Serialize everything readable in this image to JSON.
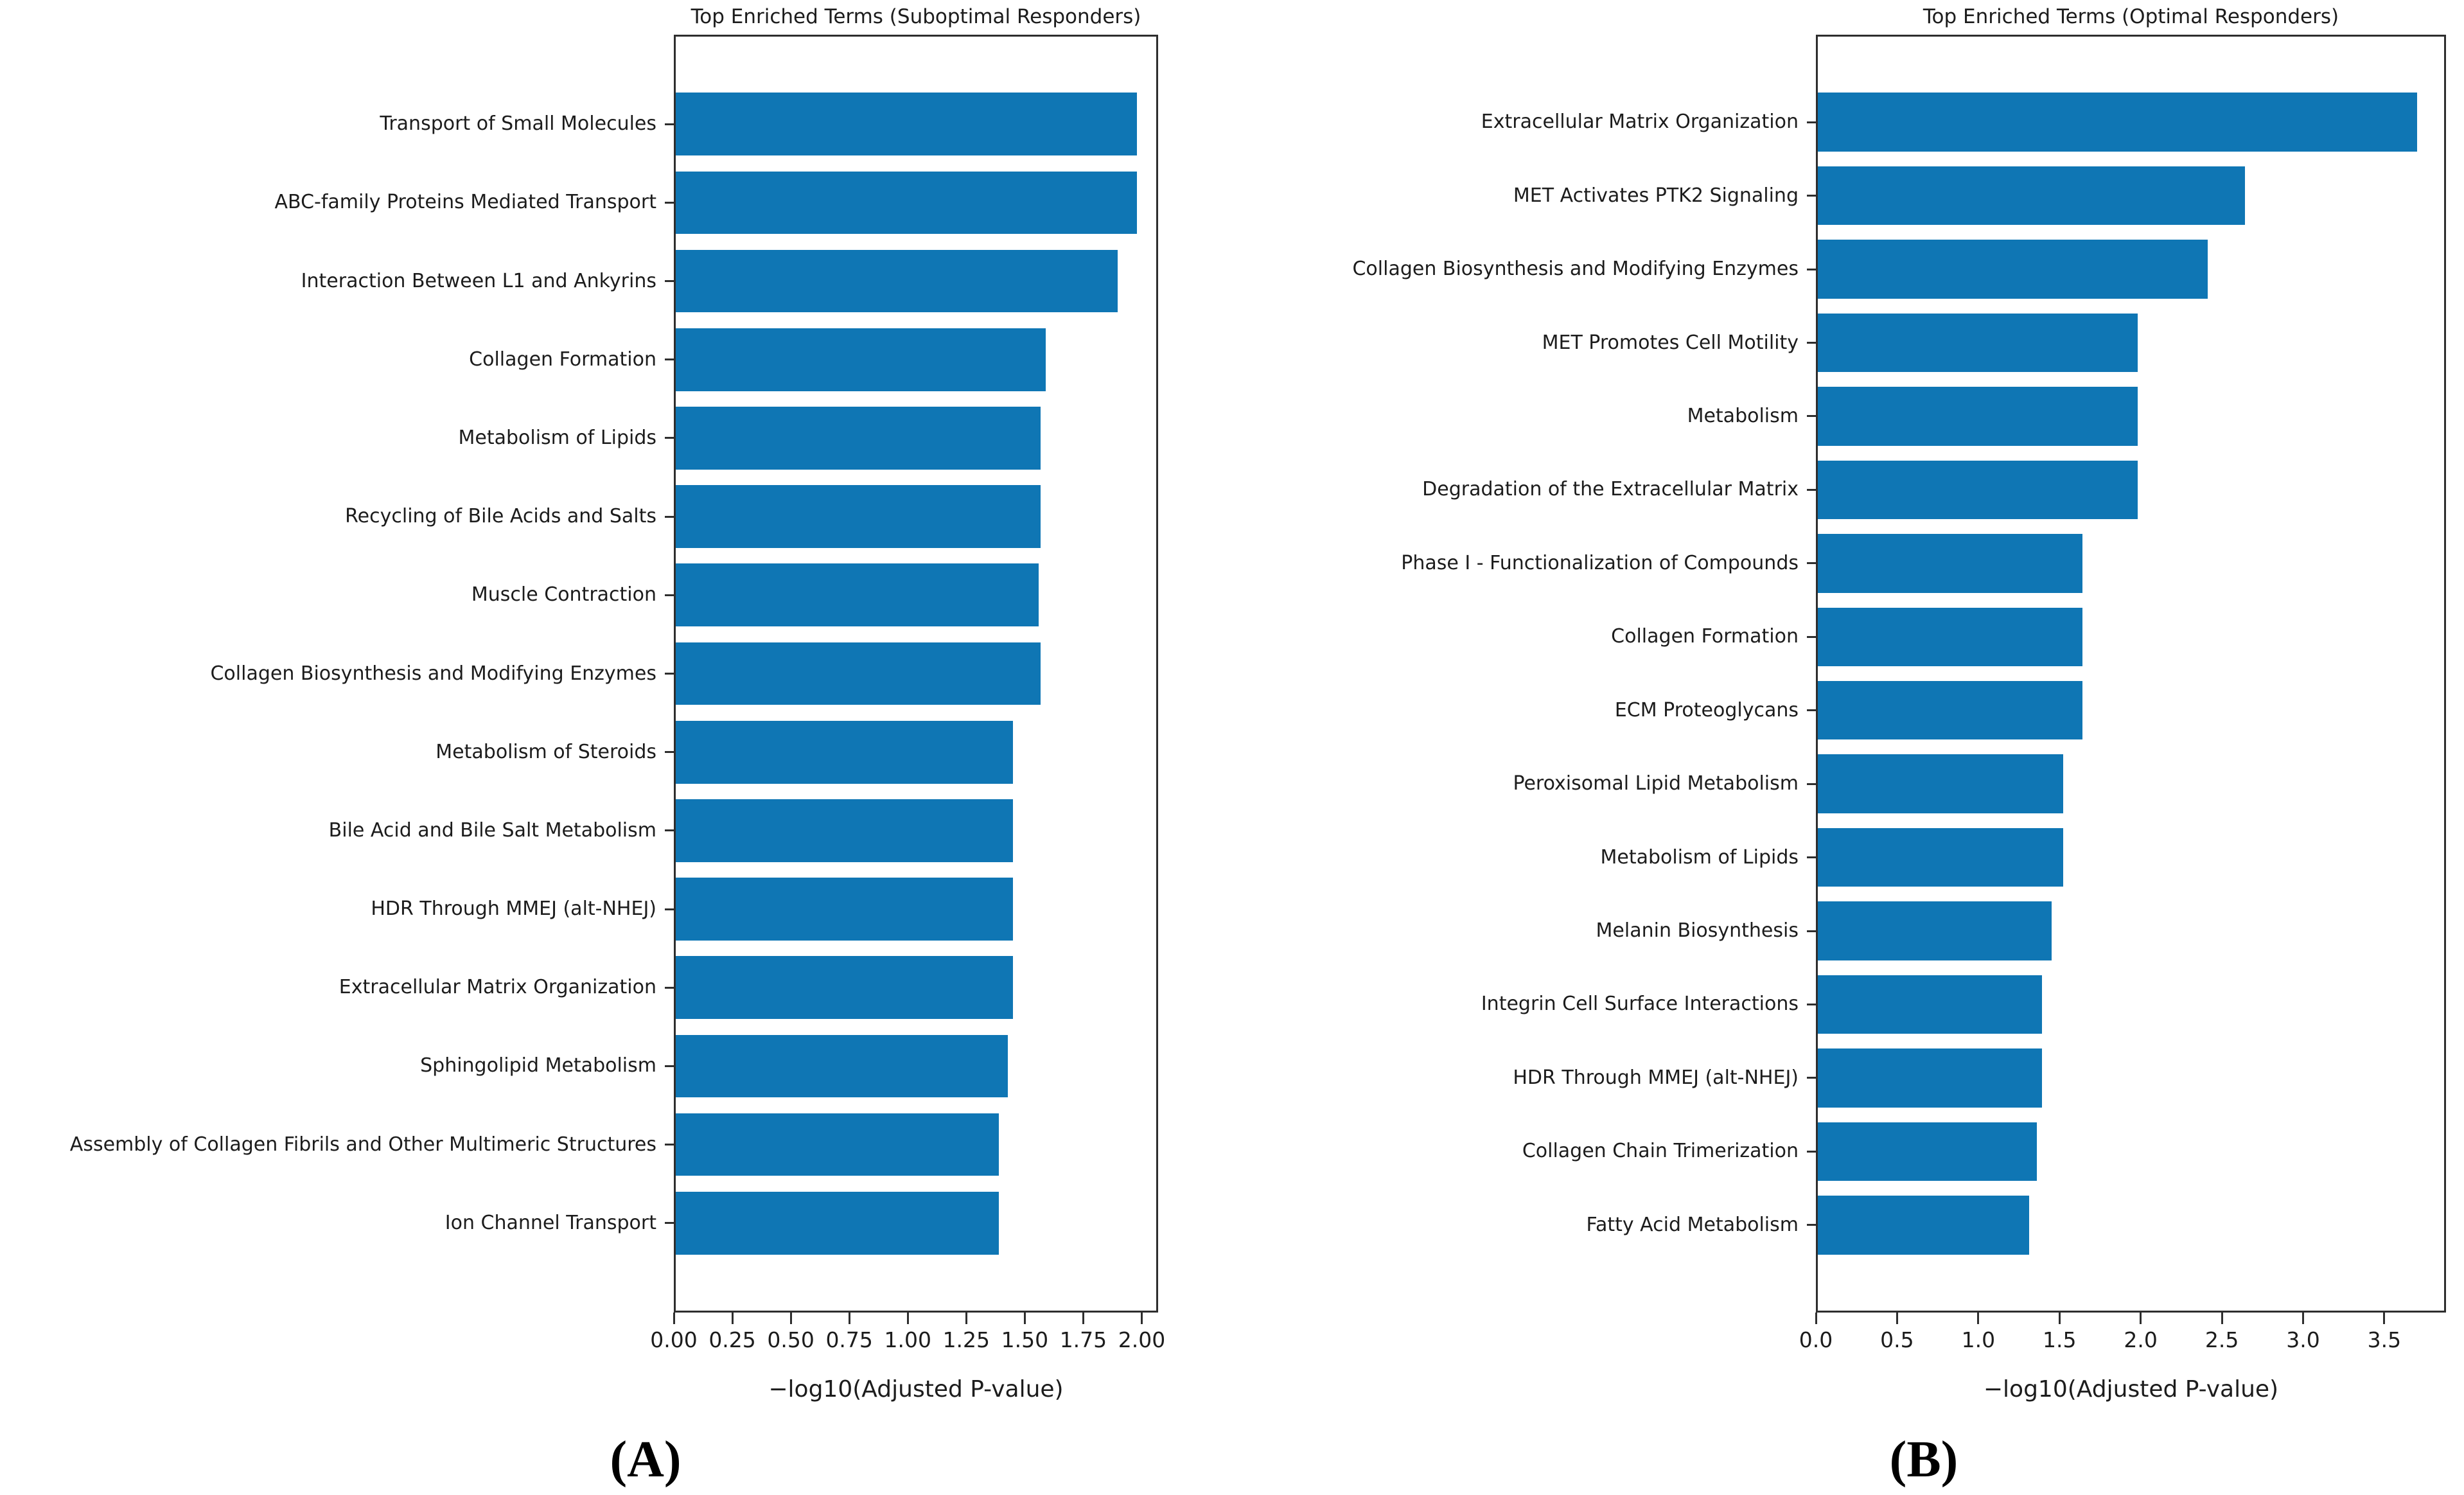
{
  "text_color": "#1c1c1c",
  "axis_color": "#2e2e2e",
  "chart_data": [
    {
      "type": "bar",
      "orientation": "horizontal",
      "panel_label": "(A)",
      "title": "Top Enriched Terms (Suboptimal Responders)",
      "xlabel": "−log10(Adjusted P-value)",
      "bar_color": "#0f76b4",
      "grid": false,
      "xlim": [
        0,
        2.07
      ],
      "xtick_values": [
        0,
        0.25,
        0.5,
        0.75,
        1.0,
        1.25,
        1.5,
        1.75,
        2.0
      ],
      "xtick_labels": [
        "0.00",
        "0.25",
        "0.50",
        "0.75",
        "1.00",
        "1.25",
        "1.50",
        "1.75",
        "2.00"
      ],
      "categories": [
        "Transport of Small Molecules",
        "ABC-family Proteins Mediated Transport",
        "Interaction Between L1 and Ankyrins",
        "Collagen Formation",
        "Metabolism of Lipids",
        "Recycling of Bile Acids and Salts",
        "Muscle Contraction",
        "Collagen Biosynthesis and Modifying Enzymes",
        "Metabolism of Steroids",
        "Bile Acid and Bile Salt Metabolism",
        "HDR Through MMEJ (alt-NHEJ)",
        "Extracellular Matrix Organization",
        "Sphingolipid Metabolism",
        "Assembly of Collagen Fibrils and Other Multimeric Structures",
        "Ion Channel Transport"
      ],
      "values": [
        1.97,
        1.97,
        1.89,
        1.58,
        1.56,
        1.56,
        1.55,
        1.56,
        1.44,
        1.44,
        1.44,
        1.44,
        1.42,
        1.38,
        1.38
      ]
    },
    {
      "type": "bar",
      "orientation": "horizontal",
      "panel_label": "(B)",
      "title": "Top Enriched Terms (Optimal Responders)",
      "xlabel": "−log10(Adjusted P-value)",
      "bar_color": "#0f76b4",
      "grid": false,
      "xlim": [
        0,
        3.88
      ],
      "xtick_values": [
        0,
        0.5,
        1.0,
        1.5,
        2.0,
        2.5,
        3.0,
        3.5
      ],
      "xtick_labels": [
        "0.0",
        "0.5",
        "1.0",
        "1.5",
        "2.0",
        "2.5",
        "3.0",
        "3.5"
      ],
      "categories": [
        "Extracellular Matrix Organization",
        "MET Activates PTK2 Signaling",
        "Collagen Biosynthesis and Modifying Enzymes",
        "MET Promotes Cell Motility",
        "Metabolism",
        "Degradation of the Extracellular Matrix",
        "Phase I - Functionalization of Compounds",
        "Collagen Formation",
        "ECM Proteoglycans",
        "Peroxisomal Lipid Metabolism",
        "Metabolism of Lipids",
        "Melanin Biosynthesis",
        "Integrin Cell Surface Interactions",
        "HDR Through MMEJ (alt-NHEJ)",
        "Collagen Chain Trimerization",
        "Fatty Acid Metabolism"
      ],
      "values": [
        3.69,
        2.63,
        2.4,
        1.97,
        1.97,
        1.97,
        1.63,
        1.63,
        1.63,
        1.51,
        1.51,
        1.44,
        1.38,
        1.38,
        1.35,
        1.3
      ]
    }
  ]
}
